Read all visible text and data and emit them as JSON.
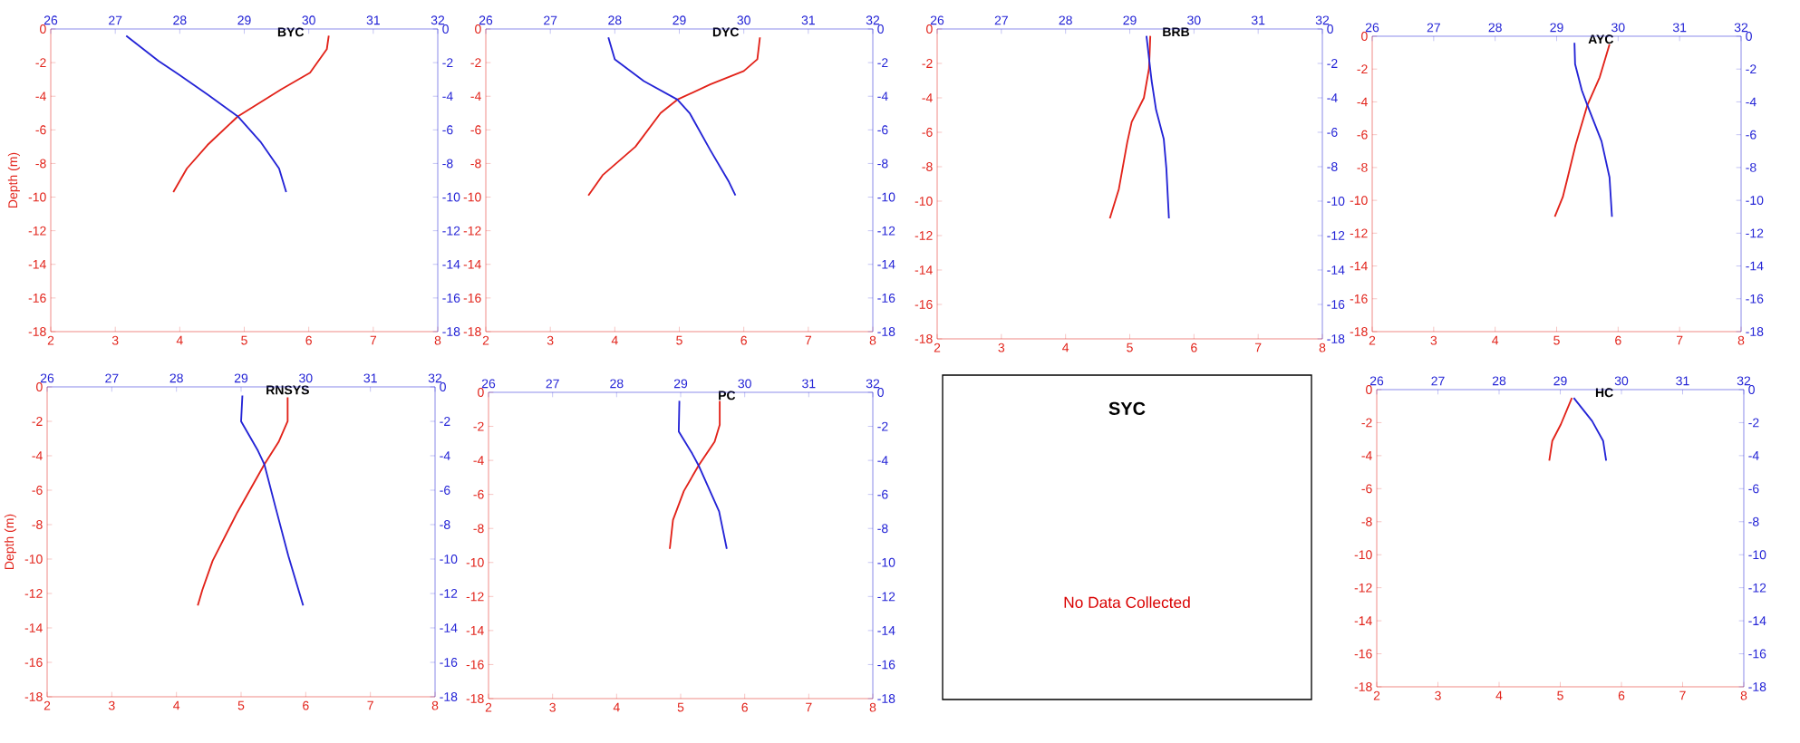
{
  "chart_data": [
    {
      "type": "line",
      "title": "BYC",
      "ylabel": "Depth (m)",
      "xlim": [
        2,
        8
      ],
      "xticks": [
        2,
        3,
        4,
        5,
        6,
        7,
        8
      ],
      "x2lim": [
        26,
        32
      ],
      "x2ticks": [
        26,
        27,
        28,
        29,
        30,
        31,
        32
      ],
      "ylim": [
        -18,
        0
      ],
      "yticks": [
        -18,
        -16,
        -14,
        -12,
        -10,
        -8,
        -6,
        -4,
        -2,
        0
      ],
      "y2lim": [
        -18,
        0
      ],
      "y2ticks": [
        -18,
        -16,
        -14,
        -12,
        -10,
        -8,
        -6,
        -4,
        -2,
        0
      ],
      "series": [
        {
          "color": "#e2231a",
          "x": [
            6.31,
            6.28,
            6.02,
            5.57,
            4.9,
            4.43,
            4.11,
            3.9
          ],
          "values": [
            -0.4,
            -1.2,
            -2.6,
            -3.6,
            -5.2,
            -6.9,
            -8.3,
            -9.7
          ]
        },
        {
          "color": "#2424d6",
          "axis": "x2",
          "x": [
            27.17,
            27.67,
            27.98,
            28.43,
            28.9,
            29.25,
            29.54,
            29.65
          ],
          "values": [
            -0.4,
            -1.9,
            -2.7,
            -3.9,
            -5.2,
            -6.7,
            -8.3,
            -9.7
          ]
        }
      ]
    },
    {
      "type": "line",
      "title": "DYC",
      "xlim": [
        2,
        8
      ],
      "xticks": [
        2,
        3,
        4,
        5,
        6,
        7,
        8
      ],
      "x2lim": [
        26,
        32
      ],
      "x2ticks": [
        26,
        27,
        28,
        29,
        30,
        31,
        32
      ],
      "ylim": [
        -18,
        0
      ],
      "yticks": [
        -18,
        -16,
        -14,
        -12,
        -10,
        -8,
        -6,
        -4,
        -2,
        0
      ],
      "y2lim": [
        -18,
        0
      ],
      "y2ticks": [
        -18,
        -16,
        -14,
        -12,
        -10,
        -8,
        -6,
        -4,
        -2,
        0
      ],
      "series": [
        {
          "color": "#e2231a",
          "x": [
            6.25,
            6.21,
            6.0,
            5.48,
            4.97,
            4.71,
            4.32,
            3.81,
            3.59
          ],
          "values": [
            -0.5,
            -1.8,
            -2.5,
            -3.3,
            -4.2,
            -5,
            -7,
            -8.7,
            -9.9
          ]
        },
        {
          "color": "#2424d6",
          "axis": "x2",
          "x": [
            27.9,
            28.0,
            28.45,
            28.97,
            29.16,
            29.48,
            29.77,
            29.87
          ],
          "values": [
            -0.5,
            -1.8,
            -3.1,
            -4.2,
            -5,
            -7.2,
            -9.1,
            -9.9
          ]
        }
      ]
    },
    {
      "type": "line",
      "title": "BRB",
      "xlim": [
        2,
        8
      ],
      "xticks": [
        2,
        3,
        4,
        5,
        6,
        7,
        8
      ],
      "x2lim": [
        26,
        32
      ],
      "x2ticks": [
        26,
        27,
        28,
        29,
        30,
        31,
        32
      ],
      "ylim": [
        -18,
        0
      ],
      "yticks": [
        -18,
        -16,
        -14,
        -12,
        -10,
        -8,
        -6,
        -4,
        -2,
        0
      ],
      "y2lim": [
        -18,
        0
      ],
      "y2ticks": [
        -18,
        -16,
        -14,
        -12,
        -10,
        -8,
        -6,
        -4,
        -2,
        0
      ],
      "series": [
        {
          "color": "#e2231a",
          "x": [
            5.32,
            5.3,
            5.22,
            5.03,
            4.96,
            4.83,
            4.69
          ],
          "values": [
            -0.4,
            -2.3,
            -4,
            -5.4,
            -6.6,
            -9.3,
            -11
          ]
        },
        {
          "color": "#2424d6",
          "axis": "x2",
          "x": [
            29.26,
            29.34,
            29.41,
            29.53,
            29.57,
            29.61
          ],
          "values": [
            -0.4,
            -3,
            -4.7,
            -6.4,
            -8.1,
            -11
          ]
        }
      ]
    },
    {
      "type": "line",
      "title": "AYC",
      "xlim": [
        2,
        8
      ],
      "xticks": [
        2,
        3,
        4,
        5,
        6,
        7,
        8
      ],
      "x2lim": [
        26,
        32
      ],
      "x2ticks": [
        26,
        27,
        28,
        29,
        30,
        31,
        32
      ],
      "ylim": [
        -18,
        0
      ],
      "yticks": [
        -18,
        -16,
        -14,
        -12,
        -10,
        -8,
        -6,
        -4,
        -2,
        0
      ],
      "y2lim": [
        -18,
        0
      ],
      "y2ticks": [
        -18,
        -16,
        -14,
        -12,
        -10,
        -8,
        -6,
        -4,
        -2,
        0
      ],
      "series": [
        {
          "color": "#e2231a",
          "x": [
            5.86,
            5.7,
            5.5,
            5.31,
            5.18,
            5.1,
            4.97
          ],
          "values": [
            -0.5,
            -2.5,
            -4.2,
            -6.6,
            -8.6,
            -9.8,
            -11
          ]
        },
        {
          "color": "#2424d6",
          "axis": "x2",
          "x": [
            29.29,
            29.3,
            29.41,
            29.5,
            29.73,
            29.86,
            29.9
          ],
          "values": [
            -0.4,
            -1.7,
            -3.3,
            -4.2,
            -6.4,
            -8.6,
            -11
          ]
        }
      ]
    },
    {
      "type": "line",
      "title": "RNSYS",
      "ylabel": "Depth (m)",
      "xlim": [
        2,
        8
      ],
      "xticks": [
        2,
        3,
        4,
        5,
        6,
        7,
        8
      ],
      "x2lim": [
        26,
        32
      ],
      "x2ticks": [
        26,
        27,
        28,
        29,
        30,
        31,
        32
      ],
      "ylim": [
        -18,
        0
      ],
      "yticks": [
        -18,
        -16,
        -14,
        -12,
        -10,
        -8,
        -6,
        -4,
        -2,
        0
      ],
      "y2lim": [
        -18,
        0
      ],
      "y2ticks": [
        -18,
        -16,
        -14,
        -12,
        -10,
        -8,
        -6,
        -4,
        -2,
        0
      ],
      "series": [
        {
          "color": "#e2231a",
          "x": [
            5.72,
            5.72,
            5.58,
            5.36,
            4.94,
            4.56,
            4.4,
            4.33
          ],
          "values": [
            -0.6,
            -2,
            -3.2,
            -4.5,
            -7.3,
            -10.1,
            -11.8,
            -12.7
          ]
        },
        {
          "color": "#2424d6",
          "axis": "x2",
          "x": [
            29.02,
            29.0,
            29.26,
            29.36,
            29.54,
            29.73,
            29.96
          ],
          "values": [
            -0.5,
            -2,
            -3.7,
            -4.5,
            -7.1,
            -9.8,
            -12.7
          ]
        }
      ]
    },
    {
      "type": "line",
      "title": "PC",
      "xlim": [
        2,
        8
      ],
      "xticks": [
        2,
        3,
        4,
        5,
        6,
        7,
        8
      ],
      "x2lim": [
        26,
        32
      ],
      "x2ticks": [
        26,
        27,
        28,
        29,
        30,
        31,
        32
      ],
      "ylim": [
        -18,
        0
      ],
      "yticks": [
        -18,
        -16,
        -14,
        -12,
        -10,
        -8,
        -6,
        -4,
        -2,
        0
      ],
      "y2lim": [
        -18,
        0
      ],
      "y2ticks": [
        -18,
        -16,
        -14,
        -12,
        -10,
        -8,
        -6,
        -4,
        -2,
        0
      ],
      "series": [
        {
          "color": "#e2231a",
          "x": [
            5.61,
            5.61,
            5.53,
            5.28,
            5.05,
            4.88,
            4.83
          ],
          "values": [
            -0.5,
            -1.9,
            -2.9,
            -4.3,
            -5.8,
            -7.5,
            -9.2
          ]
        },
        {
          "color": "#2424d6",
          "axis": "x2",
          "x": [
            28.98,
            28.97,
            29.18,
            29.28,
            29.6,
            29.72
          ],
          "values": [
            -0.5,
            -2.3,
            -3.6,
            -4.3,
            -7,
            -9.2
          ]
        }
      ]
    },
    {
      "type": "other",
      "title": "SYC",
      "annotations": [
        "No Data Collected"
      ]
    },
    {
      "type": "line",
      "title": "HC",
      "xlim": [
        2,
        8
      ],
      "xticks": [
        2,
        3,
        4,
        5,
        6,
        7,
        8
      ],
      "x2lim": [
        26,
        32
      ],
      "x2ticks": [
        26,
        27,
        28,
        29,
        30,
        31,
        32
      ],
      "ylim": [
        -18,
        0
      ],
      "yticks": [
        -18,
        -16,
        -14,
        -12,
        -10,
        -8,
        -6,
        -4,
        -2,
        0
      ],
      "y2lim": [
        -18,
        0
      ],
      "y2ticks": [
        -18,
        -16,
        -14,
        -12,
        -10,
        -8,
        -6,
        -4,
        -2,
        0
      ],
      "series": [
        {
          "color": "#e2231a",
          "x": [
            5.19,
            5.01,
            4.87,
            4.82
          ],
          "values": [
            -0.5,
            -2.1,
            -3.1,
            -4.3
          ]
        },
        {
          "color": "#2424d6",
          "axis": "x2",
          "x": [
            29.22,
            29.52,
            29.7,
            29.75
          ],
          "values": [
            -0.5,
            -1.9,
            -3.1,
            -4.3
          ]
        }
      ]
    }
  ]
}
